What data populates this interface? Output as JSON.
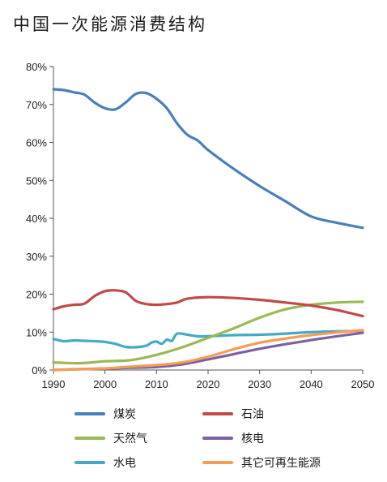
{
  "chart_data": {
    "type": "line",
    "title": "中国一次能源消费结构",
    "xlabel": "",
    "ylabel": "",
    "xlim": [
      1990,
      2050
    ],
    "ylim": [
      0,
      80
    ],
    "x_ticks": [
      "1990",
      "2000",
      "2010",
      "2020",
      "2030",
      "2040",
      "2050"
    ],
    "y_ticks": [
      "0%",
      "10%",
      "20%",
      "30%",
      "40%",
      "50%",
      "60%",
      "70%",
      "80%"
    ],
    "grid": false,
    "legend_placement": "bottom",
    "series": [
      {
        "name": "煤炭",
        "color": "#4A7EBB",
        "points": [
          [
            1990,
            74
          ],
          [
            1992,
            73.8
          ],
          [
            1994,
            73.2
          ],
          [
            1996,
            72.6
          ],
          [
            1998,
            70.5
          ],
          [
            2000,
            69
          ],
          [
            2002,
            68.7
          ],
          [
            2004,
            70.5
          ],
          [
            2006,
            72.8
          ],
          [
            2008,
            73
          ],
          [
            2010,
            71.5
          ],
          [
            2012,
            69
          ],
          [
            2014,
            65
          ],
          [
            2016,
            62
          ],
          [
            2018,
            60.5
          ],
          [
            2020,
            58
          ],
          [
            2025,
            53
          ],
          [
            2030,
            48.5
          ],
          [
            2035,
            44.5
          ],
          [
            2040,
            40.5
          ],
          [
            2045,
            38.8
          ],
          [
            2050,
            37.5
          ]
        ]
      },
      {
        "name": "石油",
        "color": "#BE4B48",
        "points": [
          [
            1990,
            16
          ],
          [
            1992,
            16.8
          ],
          [
            1994,
            17.2
          ],
          [
            1996,
            17.5
          ],
          [
            1998,
            19.5
          ],
          [
            2000,
            20.8
          ],
          [
            2002,
            21
          ],
          [
            2004,
            20.5
          ],
          [
            2006,
            18.2
          ],
          [
            2008,
            17.4
          ],
          [
            2010,
            17.2
          ],
          [
            2012,
            17.4
          ],
          [
            2014,
            17.8
          ],
          [
            2016,
            18.8
          ],
          [
            2020,
            19.2
          ],
          [
            2025,
            19
          ],
          [
            2030,
            18.5
          ],
          [
            2035,
            17.8
          ],
          [
            2040,
            17
          ],
          [
            2045,
            15.8
          ],
          [
            2050,
            14.2
          ]
        ]
      },
      {
        "name": "天然气",
        "color": "#98B954",
        "points": [
          [
            1990,
            2
          ],
          [
            1995,
            1.8
          ],
          [
            2000,
            2.3
          ],
          [
            2005,
            2.6
          ],
          [
            2010,
            4
          ],
          [
            2015,
            6
          ],
          [
            2020,
            8.5
          ],
          [
            2025,
            11
          ],
          [
            2030,
            13.8
          ],
          [
            2035,
            16
          ],
          [
            2040,
            17.2
          ],
          [
            2045,
            17.8
          ],
          [
            2050,
            18
          ]
        ]
      },
      {
        "name": "核电",
        "color": "#7D60A0",
        "points": [
          [
            1990,
            0
          ],
          [
            1994,
            0.2
          ],
          [
            2000,
            0.4
          ],
          [
            2005,
            0.6
          ],
          [
            2010,
            0.8
          ],
          [
            2015,
            1.5
          ],
          [
            2020,
            2.8
          ],
          [
            2025,
            4.2
          ],
          [
            2030,
            5.6
          ],
          [
            2035,
            6.8
          ],
          [
            2040,
            7.9
          ],
          [
            2045,
            8.9
          ],
          [
            2050,
            9.8
          ]
        ]
      },
      {
        "name": "水电",
        "color": "#46AAC5",
        "points": [
          [
            1990,
            8.2
          ],
          [
            1992,
            7.6
          ],
          [
            1994,
            7.8
          ],
          [
            1996,
            7.7
          ],
          [
            1998,
            7.6
          ],
          [
            2000,
            7.4
          ],
          [
            2002,
            6.9
          ],
          [
            2004,
            6.1
          ],
          [
            2006,
            6
          ],
          [
            2008,
            6.4
          ],
          [
            2009,
            7.2
          ],
          [
            2010,
            7.5
          ],
          [
            2011,
            6.9
          ],
          [
            2012,
            8
          ],
          [
            2013,
            7.7
          ],
          [
            2014,
            9.6
          ],
          [
            2016,
            9.3
          ],
          [
            2018,
            8.9
          ],
          [
            2020,
            8.9
          ],
          [
            2025,
            9.2
          ],
          [
            2030,
            9.3
          ],
          [
            2035,
            9.6
          ],
          [
            2040,
            10
          ],
          [
            2045,
            10.2
          ],
          [
            2050,
            10.3
          ]
        ]
      },
      {
        "name": "其它可再生能源",
        "color": "#F59D56",
        "points": [
          [
            1990,
            0
          ],
          [
            1995,
            0.2
          ],
          [
            2000,
            0.4
          ],
          [
            2005,
            0.9
          ],
          [
            2010,
            1.3
          ],
          [
            2015,
            2
          ],
          [
            2020,
            3.5
          ],
          [
            2025,
            5.5
          ],
          [
            2030,
            7.2
          ],
          [
            2035,
            8.3
          ],
          [
            2040,
            9.2
          ],
          [
            2045,
            9.9
          ],
          [
            2050,
            10.5
          ]
        ]
      }
    ]
  }
}
